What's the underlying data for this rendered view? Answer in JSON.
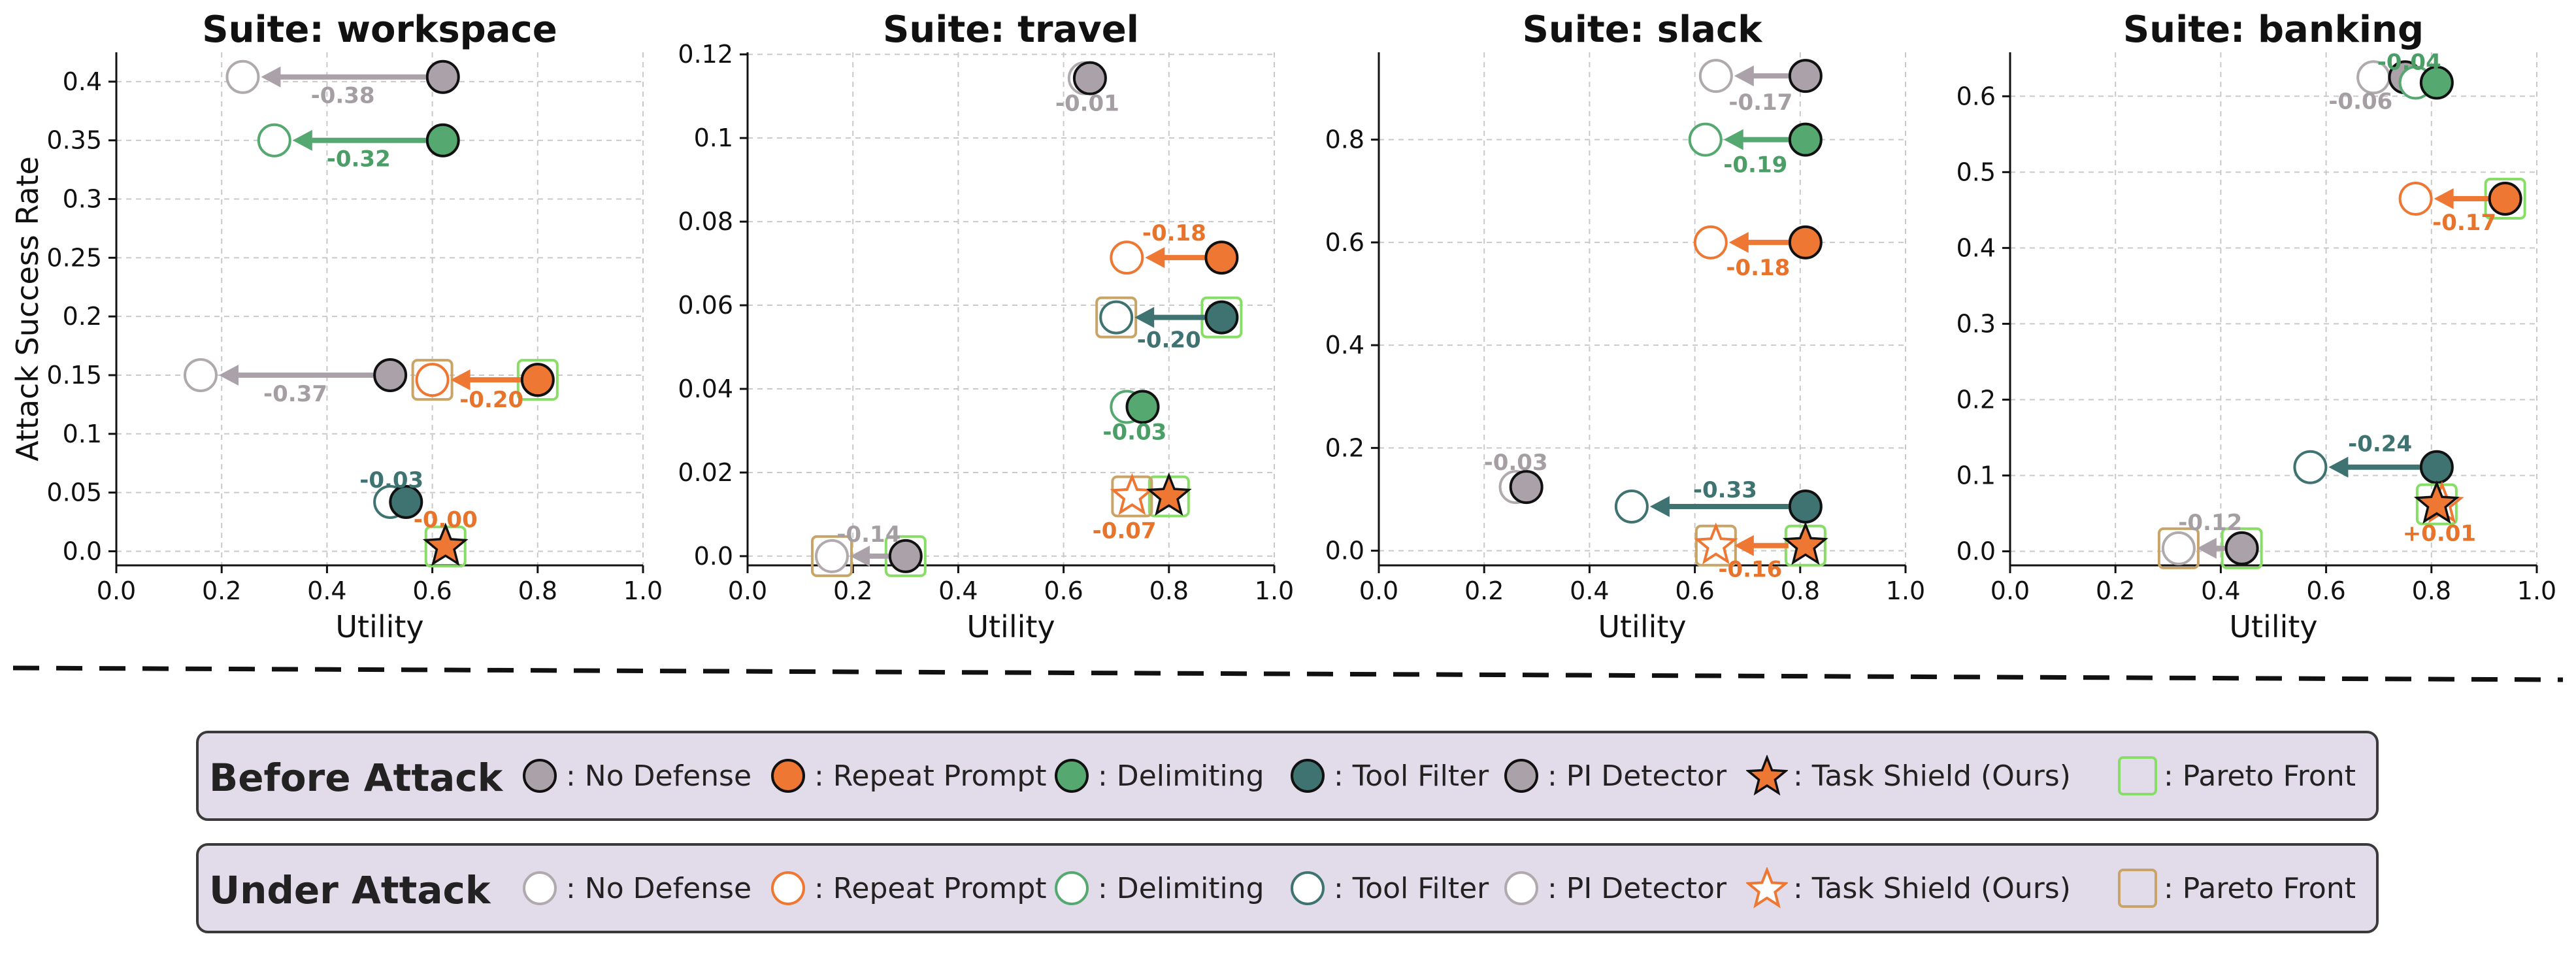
{
  "chart_data": [
    {
      "type": "scatter",
      "title": "Suite: workspace",
      "xlabel": "Utility",
      "ylabel": "Attack Success Rate",
      "xlim": [
        0,
        1.0
      ],
      "ylim": [
        -0.012,
        0.425
      ],
      "xticks": [
        "0.0",
        "0.2",
        "0.4",
        "0.6",
        "0.8",
        "1.0"
      ],
      "yticks": [
        {
          "v": 0.0,
          "t": "0.0"
        },
        {
          "v": 0.05,
          "t": "0.05"
        },
        {
          "v": 0.1,
          "t": "0.1"
        },
        {
          "v": 0.15,
          "t": "0.15"
        },
        {
          "v": 0.2,
          "t": "0.2"
        },
        {
          "v": 0.25,
          "t": "0.25"
        },
        {
          "v": 0.3,
          "t": "0.3"
        },
        {
          "v": 0.35,
          "t": "0.35"
        },
        {
          "v": 0.4,
          "t": "0.4"
        }
      ],
      "grid": true,
      "points": [
        {
          "defense": "pi_detector",
          "shape": "circle",
          "before": {
            "x": 0.62,
            "y": 0.404
          },
          "under": {
            "x": 0.24,
            "y": 0.404
          },
          "delta": "-0.38",
          "arrow": true,
          "pareto": false
        },
        {
          "defense": "delimiting",
          "shape": "circle",
          "before": {
            "x": 0.62,
            "y": 0.35
          },
          "under": {
            "x": 0.3,
            "y": 0.35
          },
          "delta": "-0.32",
          "arrow": true,
          "pareto": false
        },
        {
          "defense": "no_defense",
          "shape": "circle",
          "before": {
            "x": 0.52,
            "y": 0.15
          },
          "under": {
            "x": 0.16,
            "y": 0.15
          },
          "delta": "-0.37",
          "arrow": true,
          "pareto": false
        },
        {
          "defense": "repeat_prompt",
          "shape": "circle",
          "before": {
            "x": 0.8,
            "y": 0.146
          },
          "under": {
            "x": 0.6,
            "y": 0.146
          },
          "delta": "-0.20",
          "arrow": true,
          "pareto": true
        },
        {
          "defense": "tool_filter",
          "shape": "circle",
          "before": {
            "x": 0.55,
            "y": 0.042
          },
          "under": {
            "x": 0.52,
            "y": 0.042
          },
          "delta": "-0.03",
          "arrow": false,
          "pareto": false
        },
        {
          "defense": "task_shield",
          "shape": "star",
          "before": {
            "x": 0.625,
            "y": 0.004
          },
          "under": {
            "x": 0.625,
            "y": 0.004
          },
          "delta": "-0.00",
          "arrow": false,
          "pareto": true
        }
      ]
    },
    {
      "type": "scatter",
      "title": "Suite: travel",
      "xlabel": "Utility",
      "ylabel": "",
      "xlim": [
        0,
        1.0
      ],
      "ylim": [
        -0.0022,
        0.1205
      ],
      "xticks": [
        "0.0",
        "0.2",
        "0.4",
        "0.6",
        "0.8",
        "1.0"
      ],
      "yticks": [
        {
          "v": 0.0,
          "t": "0.0"
        },
        {
          "v": 0.02,
          "t": "0.02"
        },
        {
          "v": 0.04,
          "t": "0.04"
        },
        {
          "v": 0.06,
          "t": "0.06"
        },
        {
          "v": 0.08,
          "t": "0.08"
        },
        {
          "v": 0.1,
          "t": "0.1"
        },
        {
          "v": 0.12,
          "t": "0.12"
        }
      ],
      "grid": true,
      "points": [
        {
          "defense": "pi_detector",
          "shape": "circle",
          "before": {
            "x": 0.65,
            "y": 0.1143
          },
          "under": {
            "x": 0.64,
            "y": 0.1143
          },
          "delta": "-0.01",
          "arrow": false,
          "pareto": false
        },
        {
          "defense": "repeat_prompt",
          "shape": "circle",
          "before": {
            "x": 0.9,
            "y": 0.0714
          },
          "under": {
            "x": 0.72,
            "y": 0.0714
          },
          "delta": "-0.18",
          "arrow": true,
          "pareto": false
        },
        {
          "defense": "tool_filter",
          "shape": "circle",
          "before": {
            "x": 0.9,
            "y": 0.0571
          },
          "under": {
            "x": 0.7,
            "y": 0.0571
          },
          "delta": "-0.20",
          "arrow": true,
          "pareto": true
        },
        {
          "defense": "delimiting",
          "shape": "circle",
          "before": {
            "x": 0.75,
            "y": 0.0357
          },
          "under": {
            "x": 0.72,
            "y": 0.0357
          },
          "delta": "-0.03",
          "arrow": false,
          "pareto": false
        },
        {
          "defense": "task_shield",
          "shape": "star",
          "before": {
            "x": 0.8,
            "y": 0.0143
          },
          "under": {
            "x": 0.73,
            "y": 0.0143
          },
          "delta": "-0.07",
          "arrow": false,
          "pareto": true
        },
        {
          "defense": "no_defense",
          "shape": "circle",
          "before": {
            "x": 0.3,
            "y": 0.0
          },
          "under": {
            "x": 0.16,
            "y": 0.0
          },
          "delta": "-0.14",
          "arrow": true,
          "pareto": true
        }
      ]
    },
    {
      "type": "scatter",
      "title": "Suite: slack",
      "xlabel": "Utility",
      "ylabel": "",
      "xlim": [
        0,
        1.0
      ],
      "ylim": [
        -0.0285,
        0.97
      ],
      "xticks": [
        "0.0",
        "0.2",
        "0.4",
        "0.6",
        "0.8",
        "1.0"
      ],
      "yticks": [
        {
          "v": 0.0,
          "t": "0.0"
        },
        {
          "v": 0.2,
          "t": "0.2"
        },
        {
          "v": 0.4,
          "t": "0.4"
        },
        {
          "v": 0.6,
          "t": "0.6"
        },
        {
          "v": 0.8,
          "t": "0.8"
        }
      ],
      "grid": true,
      "points": [
        {
          "defense": "pi_detector",
          "shape": "circle",
          "before": {
            "x": 0.81,
            "y": 0.924
          },
          "under": {
            "x": 0.64,
            "y": 0.924
          },
          "delta": "-0.17",
          "arrow": true,
          "pareto": false
        },
        {
          "defense": "delimiting",
          "shape": "circle",
          "before": {
            "x": 0.81,
            "y": 0.8
          },
          "under": {
            "x": 0.62,
            "y": 0.8
          },
          "delta": "-0.19",
          "arrow": true,
          "pareto": false
        },
        {
          "defense": "repeat_prompt",
          "shape": "circle",
          "before": {
            "x": 0.81,
            "y": 0.6
          },
          "under": {
            "x": 0.63,
            "y": 0.6
          },
          "delta": "-0.18",
          "arrow": true,
          "pareto": false
        },
        {
          "defense": "no_defense",
          "shape": "circle",
          "before": {
            "x": 0.28,
            "y": 0.124
          },
          "under": {
            "x": 0.26,
            "y": 0.124
          },
          "delta": "-0.03",
          "arrow": false,
          "pareto": false
        },
        {
          "defense": "tool_filter",
          "shape": "circle",
          "before": {
            "x": 0.81,
            "y": 0.086
          },
          "under": {
            "x": 0.48,
            "y": 0.086
          },
          "delta": "-0.33",
          "arrow": true,
          "pareto": false
        },
        {
          "defense": "task_shield",
          "shape": "star",
          "before": {
            "x": 0.81,
            "y": 0.01
          },
          "under": {
            "x": 0.64,
            "y": 0.01
          },
          "delta": "-0.16",
          "arrow": true,
          "pareto": true
        }
      ]
    },
    {
      "type": "scatter",
      "title": "Suite: banking",
      "xlabel": "Utility",
      "ylabel": "",
      "xlim": [
        0,
        1.0
      ],
      "ylim": [
        -0.0185,
        0.658
      ],
      "xticks": [
        "0.0",
        "0.2",
        "0.4",
        "0.6",
        "0.8",
        "1.0"
      ],
      "yticks": [
        {
          "v": 0.0,
          "t": "0.0"
        },
        {
          "v": 0.1,
          "t": "0.1"
        },
        {
          "v": 0.2,
          "t": "0.2"
        },
        {
          "v": 0.3,
          "t": "0.3"
        },
        {
          "v": 0.4,
          "t": "0.4"
        },
        {
          "v": 0.5,
          "t": "0.5"
        },
        {
          "v": 0.6,
          "t": "0.6"
        }
      ],
      "grid": true,
      "points": [
        {
          "defense": "pi_detector",
          "shape": "circle",
          "before": {
            "x": 0.75,
            "y": 0.625
          },
          "under": {
            "x": 0.69,
            "y": 0.625
          },
          "delta": "-0.06",
          "arrow": false,
          "pareto": false
        },
        {
          "defense": "delimiting",
          "shape": "circle",
          "before": {
            "x": 0.81,
            "y": 0.618
          },
          "under": {
            "x": 0.77,
            "y": 0.618
          },
          "delta": "-0.04",
          "arrow": false,
          "pareto": false
        },
        {
          "defense": "repeat_prompt",
          "shape": "circle",
          "before": {
            "x": 0.94,
            "y": 0.465
          },
          "under": {
            "x": 0.77,
            "y": 0.465
          },
          "delta": "-0.17",
          "arrow": true,
          "pareto": true
        },
        {
          "defense": "tool_filter",
          "shape": "circle",
          "before": {
            "x": 0.81,
            "y": 0.111
          },
          "under": {
            "x": 0.57,
            "y": 0.111
          },
          "delta": "-0.24",
          "arrow": true,
          "pareto": false
        },
        {
          "defense": "task_shield",
          "shape": "star",
          "before": {
            "x": 0.81,
            "y": 0.062
          },
          "under": {
            "x": 0.82,
            "y": 0.062
          },
          "delta": "+0.01",
          "arrow": false,
          "pareto": true
        },
        {
          "defense": "no_defense",
          "shape": "circle",
          "before": {
            "x": 0.44,
            "y": 0.004
          },
          "under": {
            "x": 0.32,
            "y": 0.004
          },
          "delta": "-0.12",
          "arrow": true,
          "pareto": true
        }
      ]
    }
  ],
  "styles": {
    "no_defense": {
      "fill": "#aaa2a8",
      "under_stroke": "#b0a9ae",
      "text": "#a59ea3"
    },
    "repeat_prompt": {
      "fill": "#ee7733",
      "under_stroke": "#ee7733",
      "text": "#e8742c"
    },
    "delimiting": {
      "fill": "#55a870",
      "under_stroke": "#55a870",
      "text": "#4a9e66"
    },
    "tool_filter": {
      "fill": "#3e7371",
      "under_stroke": "#3e7371",
      "text": "#3e7371"
    },
    "pi_detector": {
      "fill": "#aaa2a8",
      "under_stroke": "#b0a9ae",
      "text": "#a59ea3"
    },
    "task_shield": {
      "fill": "#ee7733",
      "under_stroke": "#ee7733",
      "text": "#e8742c"
    },
    "pareto_before": "#88dd66",
    "pareto_under": "#c8a566",
    "grid": "#c9c9c9",
    "divider": "#111111"
  },
  "legend": {
    "before": {
      "title": "Before Attack",
      "items": [
        {
          "key": "no_defense",
          "marker": "circle-filled",
          "label": ": No Defense"
        },
        {
          "key": "repeat_prompt",
          "marker": "circle-filled",
          "label": ": Repeat Prompt"
        },
        {
          "key": "delimiting",
          "marker": "circle-filled",
          "label": ": Delimiting"
        },
        {
          "key": "tool_filter",
          "marker": "circle-filled",
          "label": ": Tool Filter"
        },
        {
          "key": "pi_detector",
          "marker": "circle-filled",
          "label": ": PI Detector"
        },
        {
          "key": "task_shield",
          "marker": "star-filled",
          "label": ": Task Shield (Ours)"
        },
        {
          "key": "pareto_before",
          "marker": "square",
          "label": ": Pareto Front"
        }
      ]
    },
    "under": {
      "title": "Under Attack",
      "items": [
        {
          "key": "no_defense",
          "marker": "circle-open",
          "label": ": No Defense"
        },
        {
          "key": "repeat_prompt",
          "marker": "circle-open",
          "label": ": Repeat Prompt"
        },
        {
          "key": "delimiting",
          "marker": "circle-open",
          "label": ": Delimiting"
        },
        {
          "key": "tool_filter",
          "marker": "circle-open",
          "label": ": Tool Filter"
        },
        {
          "key": "pi_detector",
          "marker": "circle-open",
          "label": ": PI Detector"
        },
        {
          "key": "task_shield",
          "marker": "star-open",
          "label": ": Task Shield (Ours)"
        },
        {
          "key": "pareto_under",
          "marker": "square",
          "label": " : Pareto Front"
        }
      ]
    }
  }
}
